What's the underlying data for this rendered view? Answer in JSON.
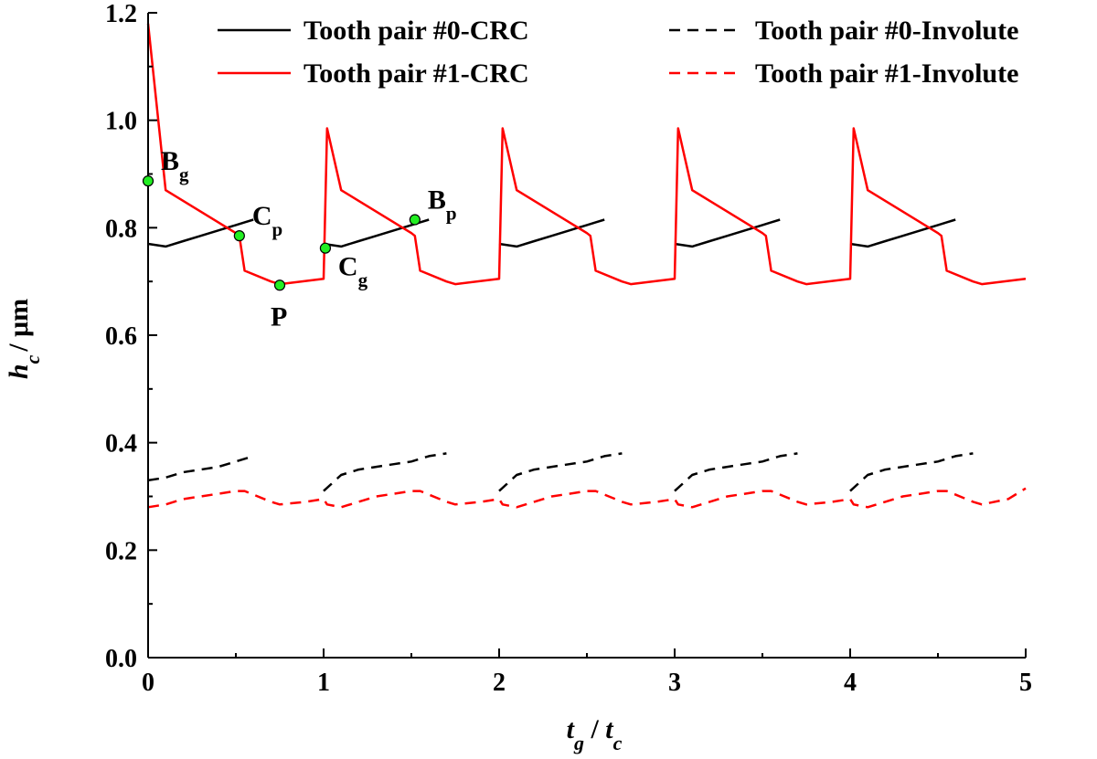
{
  "chart_data": {
    "type": "line",
    "xlabel": {
      "main": "t",
      "sub": "g",
      "sep": " / ",
      "main2": "t",
      "sub2": "c"
    },
    "ylabel": {
      "main": "h",
      "sub": "c",
      "unit": "/ μm"
    },
    "xlim": [
      0,
      5
    ],
    "ylim": [
      0,
      1.2
    ],
    "xticks": [
      0,
      1,
      2,
      3,
      4,
      5
    ],
    "yticks": [
      0.0,
      0.2,
      0.4,
      0.6,
      0.8,
      1.0,
      1.2
    ],
    "xtick_labels": [
      "0",
      "1",
      "2",
      "3",
      "4",
      "5"
    ],
    "ytick_labels": [
      "0.0",
      "0.2",
      "0.4",
      "0.6",
      "0.8",
      "1.0",
      "1.2"
    ],
    "grid": false,
    "legend_position": "top",
    "series": [
      {
        "name": "Tooth pair #0-CRC",
        "color": "#000000",
        "dash": "solid",
        "x": [
          0.0,
          0.1,
          0.2,
          0.3,
          0.4,
          0.5,
          0.55,
          0.6,
          null,
          1.0,
          1.1,
          1.2,
          1.3,
          1.4,
          1.5,
          1.55,
          1.6,
          null,
          2.0,
          2.1,
          2.2,
          2.3,
          2.4,
          2.5,
          2.55,
          2.6,
          null,
          3.0,
          3.1,
          3.2,
          3.3,
          3.4,
          3.5,
          3.55,
          3.6,
          null,
          4.0,
          4.1,
          4.2,
          4.3,
          4.4,
          4.5,
          4.55,
          4.6
        ],
        "y": [
          0.77,
          0.765,
          0.775,
          0.785,
          0.795,
          0.805,
          0.81,
          0.815,
          null,
          0.77,
          0.765,
          0.775,
          0.785,
          0.795,
          0.805,
          0.81,
          0.815,
          null,
          0.77,
          0.765,
          0.775,
          0.785,
          0.795,
          0.805,
          0.81,
          0.815,
          null,
          0.77,
          0.765,
          0.775,
          0.785,
          0.795,
          0.805,
          0.81,
          0.815,
          null,
          0.77,
          0.765,
          0.775,
          0.785,
          0.795,
          0.805,
          0.81,
          0.815
        ]
      },
      {
        "name": "Tooth pair #1-CRC",
        "color": "#ff0000",
        "dash": "solid",
        "x": [
          0.0,
          0.1,
          0.2,
          0.3,
          0.4,
          0.5,
          0.52,
          0.55,
          0.7,
          0.75,
          1.0,
          1.02,
          1.1,
          1.2,
          1.3,
          1.4,
          1.5,
          1.52,
          1.55,
          1.7,
          1.75,
          2.0,
          2.02,
          2.1,
          2.2,
          2.3,
          2.4,
          2.5,
          2.52,
          2.55,
          2.7,
          2.75,
          3.0,
          3.02,
          3.1,
          3.2,
          3.3,
          3.4,
          3.5,
          3.52,
          3.55,
          3.7,
          3.75,
          4.0,
          4.02,
          4.1,
          4.2,
          4.3,
          4.4,
          4.5,
          4.52,
          4.55,
          4.7,
          4.75,
          5.0
        ],
        "y": [
          1.18,
          0.87,
          0.85,
          0.83,
          0.81,
          0.79,
          0.785,
          0.72,
          0.7,
          0.695,
          0.705,
          0.985,
          0.87,
          0.85,
          0.83,
          0.81,
          0.79,
          0.785,
          0.72,
          0.7,
          0.695,
          0.705,
          0.985,
          0.87,
          0.85,
          0.83,
          0.81,
          0.79,
          0.785,
          0.72,
          0.7,
          0.695,
          0.705,
          0.985,
          0.87,
          0.85,
          0.83,
          0.81,
          0.79,
          0.785,
          0.72,
          0.7,
          0.695,
          0.705,
          0.985,
          0.87,
          0.85,
          0.83,
          0.81,
          0.79,
          0.785,
          0.72,
          0.7,
          0.695,
          0.705
        ]
      },
      {
        "name": "Tooth pair #0-Involute",
        "color": "#000000",
        "dash": "dashed",
        "x": [
          0.0,
          0.1,
          0.2,
          0.3,
          0.4,
          0.5,
          0.6,
          null,
          1.0,
          1.1,
          1.2,
          1.3,
          1.4,
          1.5,
          1.6,
          1.7,
          null,
          2.0,
          2.1,
          2.2,
          2.3,
          2.4,
          2.5,
          2.6,
          2.7,
          null,
          3.0,
          3.1,
          3.2,
          3.3,
          3.4,
          3.5,
          3.6,
          3.7,
          null,
          4.0,
          4.1,
          4.2,
          4.3,
          4.4,
          4.5,
          4.6,
          4.7
        ],
        "y": [
          0.33,
          0.335,
          0.345,
          0.35,
          0.355,
          0.365,
          0.375,
          null,
          0.31,
          0.34,
          0.35,
          0.355,
          0.36,
          0.365,
          0.375,
          0.38,
          null,
          0.31,
          0.34,
          0.35,
          0.355,
          0.36,
          0.365,
          0.375,
          0.38,
          null,
          0.31,
          0.34,
          0.35,
          0.355,
          0.36,
          0.365,
          0.375,
          0.38,
          null,
          0.31,
          0.34,
          0.35,
          0.355,
          0.36,
          0.365,
          0.375,
          0.38
        ]
      },
      {
        "name": "Tooth pair #1-Involute",
        "color": "#ff0000",
        "dash": "dashed",
        "x": [
          0.0,
          0.1,
          0.2,
          0.3,
          0.4,
          0.5,
          0.55,
          0.7,
          0.75,
          0.9,
          1.0,
          1.02,
          1.1,
          1.2,
          1.3,
          1.4,
          1.5,
          1.55,
          1.7,
          1.75,
          1.9,
          2.0,
          2.02,
          2.1,
          2.2,
          2.3,
          2.4,
          2.5,
          2.55,
          2.7,
          2.75,
          2.9,
          3.0,
          3.02,
          3.1,
          3.2,
          3.3,
          3.4,
          3.5,
          3.55,
          3.7,
          3.75,
          3.9,
          4.0,
          4.02,
          4.1,
          4.2,
          4.3,
          4.4,
          4.5,
          4.55,
          4.7,
          4.75,
          4.9,
          5.0
        ],
        "y": [
          0.28,
          0.285,
          0.295,
          0.3,
          0.305,
          0.31,
          0.31,
          0.29,
          0.285,
          0.29,
          0.295,
          0.285,
          0.28,
          0.29,
          0.3,
          0.305,
          0.31,
          0.31,
          0.29,
          0.285,
          0.29,
          0.295,
          0.285,
          0.28,
          0.29,
          0.3,
          0.305,
          0.31,
          0.31,
          0.29,
          0.285,
          0.29,
          0.295,
          0.285,
          0.28,
          0.29,
          0.3,
          0.305,
          0.31,
          0.31,
          0.29,
          0.285,
          0.29,
          0.295,
          0.285,
          0.28,
          0.29,
          0.3,
          0.305,
          0.31,
          0.31,
          0.29,
          0.285,
          0.295,
          0.315
        ]
      }
    ],
    "annotations": [
      {
        "main": "B",
        "sub": "g",
        "x": 0.0,
        "y": 0.887
      },
      {
        "main": "C",
        "sub": "p",
        "x": 0.52,
        "y": 0.785
      },
      {
        "main": "P",
        "sub": "",
        "x": 0.75,
        "y": 0.693
      },
      {
        "main": "C",
        "sub": "g",
        "x": 1.01,
        "y": 0.762
      },
      {
        "main": "B",
        "sub": "p",
        "x": 1.52,
        "y": 0.815
      }
    ],
    "marker_color": "#22ee22"
  }
}
